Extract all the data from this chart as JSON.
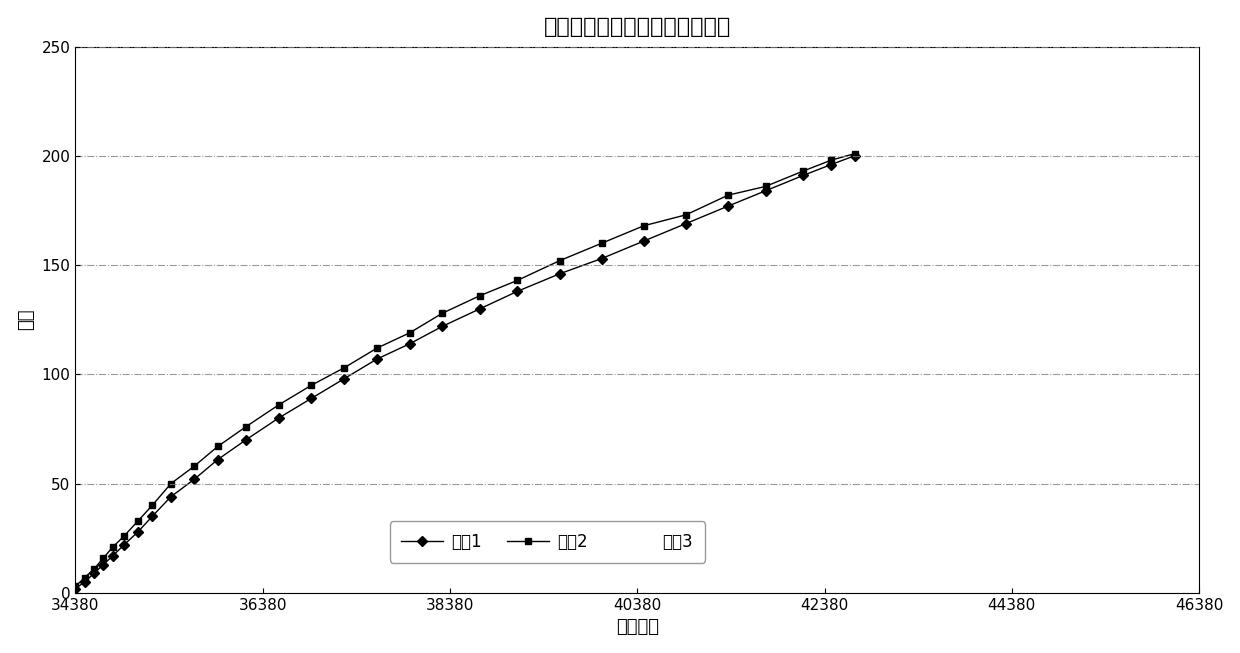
{
  "title": "第一、二、三次反行程数据拟合",
  "xlabel": "压力计数",
  "ylabel": "流量",
  "xlim": [
    34380,
    46380
  ],
  "ylim": [
    0,
    250
  ],
  "xticks": [
    34380,
    36380,
    38380,
    40380,
    42380,
    44380,
    46380
  ],
  "yticks": [
    0,
    50,
    100,
    150,
    200,
    250
  ],
  "series1_x": [
    34380,
    34480,
    34580,
    34680,
    34780,
    34900,
    35050,
    35200,
    35400,
    35650,
    35900,
    36200,
    36550,
    36900,
    37250,
    37600,
    37950,
    38300,
    38700,
    39100,
    39550,
    40000,
    40450,
    40900,
    41350,
    41750,
    42150,
    42450,
    42700
  ],
  "series1_y": [
    2,
    5,
    9,
    13,
    17,
    22,
    28,
    35,
    44,
    52,
    61,
    70,
    80,
    89,
    98,
    107,
    114,
    122,
    130,
    138,
    146,
    153,
    161,
    169,
    177,
    184,
    191,
    196,
    200
  ],
  "series2_x": [
    34380,
    34480,
    34580,
    34680,
    34780,
    34900,
    35050,
    35200,
    35400,
    35650,
    35900,
    36200,
    36550,
    36900,
    37250,
    37600,
    37950,
    38300,
    38700,
    39100,
    39550,
    40000,
    40450,
    40900,
    41350,
    41750,
    42150,
    42450,
    42700
  ],
  "series2_y": [
    3,
    7,
    11,
    16,
    21,
    26,
    33,
    40,
    50,
    58,
    67,
    76,
    86,
    95,
    103,
    112,
    119,
    128,
    136,
    143,
    152,
    160,
    168,
    173,
    182,
    186,
    193,
    198,
    201
  ],
  "series1_label": "系列1",
  "series2_label": "系列2",
  "series3_label": "系列3",
  "line_color": "#000000",
  "bg_color": "#ffffff",
  "plot_bg_color": "#ffffff",
  "grid_color": "#808080",
  "title_fontsize": 16,
  "axis_label_fontsize": 13,
  "tick_fontsize": 11,
  "legend_fontsize": 12
}
